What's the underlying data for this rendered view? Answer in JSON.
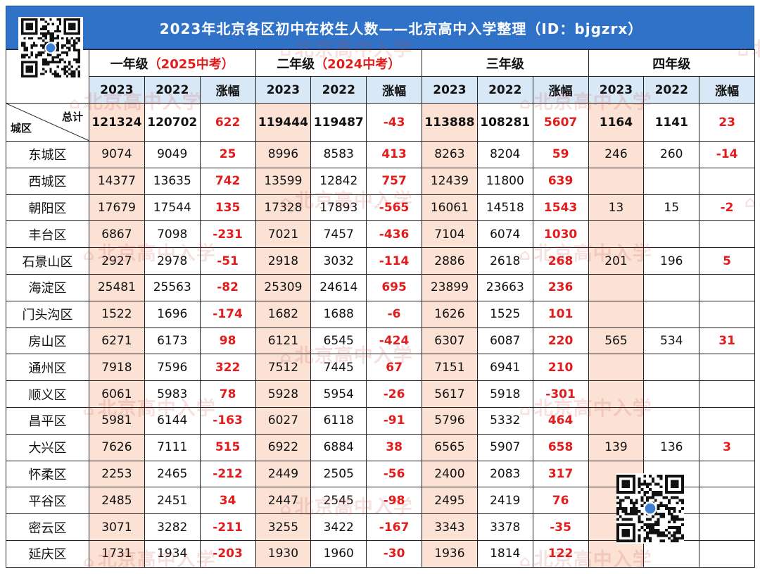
{
  "title": "2023年北京各区初中在校生人数——北京高中入学整理（ID：bjgzrx）",
  "watermark_text": "北京高中入学",
  "columns": {
    "grades": [
      {
        "label": "一年级",
        "note": "（2025中考）"
      },
      {
        "label": "二年级",
        "note": "（2024中考）"
      },
      {
        "label": "三年级",
        "note": ""
      },
      {
        "label": "四年级",
        "note": ""
      }
    ],
    "year_headers": [
      "2023",
      "2022",
      "涨幅"
    ]
  },
  "corner": {
    "total_label": "总计",
    "district_label": "城区"
  },
  "totals": [
    "121324",
    "120702",
    "622",
    "119444",
    "119487",
    "-43",
    "113888",
    "108281",
    "5607",
    "1164",
    "1141",
    "23"
  ],
  "rows": [
    {
      "district": "东城区",
      "values": [
        "9074",
        "9049",
        "25",
        "8996",
        "8583",
        "413",
        "8263",
        "8204",
        "59",
        "246",
        "260",
        "-14"
      ]
    },
    {
      "district": "西城区",
      "values": [
        "14377",
        "13635",
        "742",
        "13599",
        "12842",
        "757",
        "12439",
        "11800",
        "639",
        "",
        "",
        ""
      ]
    },
    {
      "district": "朝阳区",
      "values": [
        "17679",
        "17544",
        "135",
        "17328",
        "17893",
        "-565",
        "16061",
        "14518",
        "1543",
        "13",
        "15",
        "-2"
      ]
    },
    {
      "district": "丰台区",
      "values": [
        "6867",
        "7098",
        "-231",
        "7021",
        "7457",
        "-436",
        "7104",
        "6074",
        "1030",
        "",
        "",
        ""
      ]
    },
    {
      "district": "石景山区",
      "values": [
        "2927",
        "2978",
        "-51",
        "2918",
        "3032",
        "-114",
        "2886",
        "2618",
        "268",
        "201",
        "196",
        "5"
      ]
    },
    {
      "district": "海淀区",
      "values": [
        "25481",
        "25563",
        "-82",
        "25309",
        "24614",
        "695",
        "23899",
        "23663",
        "236",
        "",
        "",
        ""
      ]
    },
    {
      "district": "门头沟区",
      "values": [
        "1522",
        "1696",
        "-174",
        "1682",
        "1688",
        "-6",
        "1626",
        "1525",
        "101",
        "",
        "",
        ""
      ]
    },
    {
      "district": "房山区",
      "values": [
        "6271",
        "6173",
        "98",
        "6121",
        "6545",
        "-424",
        "6307",
        "6087",
        "220",
        "565",
        "534",
        "31"
      ]
    },
    {
      "district": "通州区",
      "values": [
        "7918",
        "7596",
        "322",
        "7512",
        "7445",
        "67",
        "7151",
        "6941",
        "210",
        "",
        "",
        ""
      ]
    },
    {
      "district": "顺义区",
      "values": [
        "6061",
        "5983",
        "78",
        "5928",
        "5954",
        "-26",
        "5617",
        "5918",
        "-301",
        "",
        "",
        ""
      ]
    },
    {
      "district": "昌平区",
      "values": [
        "5981",
        "6144",
        "-163",
        "6027",
        "6118",
        "-91",
        "5796",
        "5332",
        "464",
        "",
        "",
        ""
      ]
    },
    {
      "district": "大兴区",
      "values": [
        "7626",
        "7111",
        "515",
        "6922",
        "6884",
        "38",
        "6565",
        "5907",
        "658",
        "139",
        "136",
        "3"
      ]
    },
    {
      "district": "怀柔区",
      "values": [
        "2253",
        "2465",
        "-212",
        "2449",
        "2505",
        "-56",
        "2400",
        "2083",
        "317",
        "",
        "",
        ""
      ]
    },
    {
      "district": "平谷区",
      "values": [
        "2485",
        "2451",
        "34",
        "2447",
        "2545",
        "-98",
        "2495",
        "2419",
        "76",
        "",
        "",
        ""
      ]
    },
    {
      "district": "密云区",
      "values": [
        "3071",
        "3282",
        "-211",
        "3255",
        "3422",
        "-167",
        "3343",
        "3378",
        "-35",
        "",
        "",
        ""
      ]
    },
    {
      "district": "延庆区",
      "values": [
        "1731",
        "1934",
        "-203",
        "1930",
        "1960",
        "-30",
        "1936",
        "1814",
        "122",
        "",
        "",
        ""
      ]
    }
  ],
  "colors": {
    "title_bg": "#2f72c7",
    "year_header_bg": "#d9e8f6",
    "highlight_bg": "#fbe2d4",
    "delta_text": "#e21b1b"
  },
  "icons": {
    "qr_code": "qr-code-icon"
  }
}
